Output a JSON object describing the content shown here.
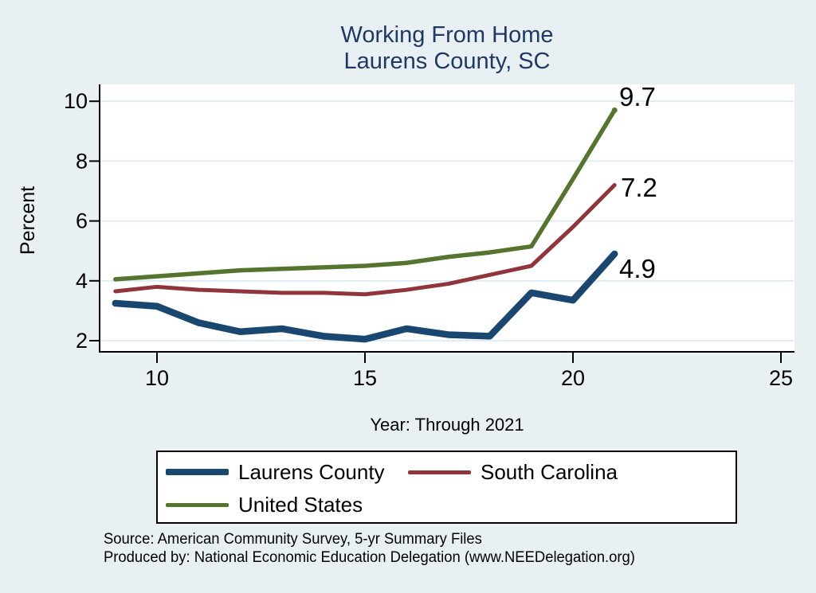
{
  "title": {
    "line1": "Working From Home",
    "line2": "Laurens County, SC"
  },
  "chart_data": {
    "type": "line",
    "title": "Working From Home, Laurens County, SC",
    "xlabel": "Year: Through 2021",
    "ylabel": "Percent",
    "x": [
      9,
      10,
      11,
      12,
      13,
      14,
      15,
      16,
      17,
      18,
      19,
      20,
      21
    ],
    "x_ticks": [
      10,
      15,
      20,
      25
    ],
    "y_ticks": [
      2,
      4,
      6,
      8,
      10
    ],
    "xlim": [
      8.6,
      25.3
    ],
    "ylim": [
      1.7,
      10.5
    ],
    "grid": "horizontal",
    "legend_position": "bottom",
    "series": [
      {
        "name": "Laurens County",
        "color": "#1a476f",
        "end_label": "4.9",
        "values": [
          3.25,
          3.15,
          2.6,
          2.3,
          2.4,
          2.15,
          2.05,
          2.4,
          2.2,
          2.15,
          3.6,
          3.35,
          4.9
        ]
      },
      {
        "name": "South Carolina",
        "color": "#90353b",
        "end_label": "7.2",
        "values": [
          3.65,
          3.8,
          3.7,
          3.65,
          3.6,
          3.6,
          3.55,
          3.7,
          3.9,
          4.2,
          4.5,
          5.8,
          7.2
        ]
      },
      {
        "name": "United States",
        "color": "#55752f",
        "end_label": "9.7",
        "values": [
          4.05,
          4.15,
          4.25,
          4.35,
          4.4,
          4.45,
          4.5,
          4.6,
          4.8,
          4.95,
          5.15,
          7.4,
          9.7
        ]
      }
    ]
  },
  "footer": {
    "source": "Source: American Community Survey, 5-yr Summary Files",
    "produced_by": "Produced by: National Economic Education Delegation (www.NEEDelegation.org)"
  },
  "colors": {
    "background": "#e9f0f4",
    "plot_background": "#ffffff",
    "grid": "#deeaf3",
    "axis": "#000000",
    "title_text": "#1f3864"
  }
}
